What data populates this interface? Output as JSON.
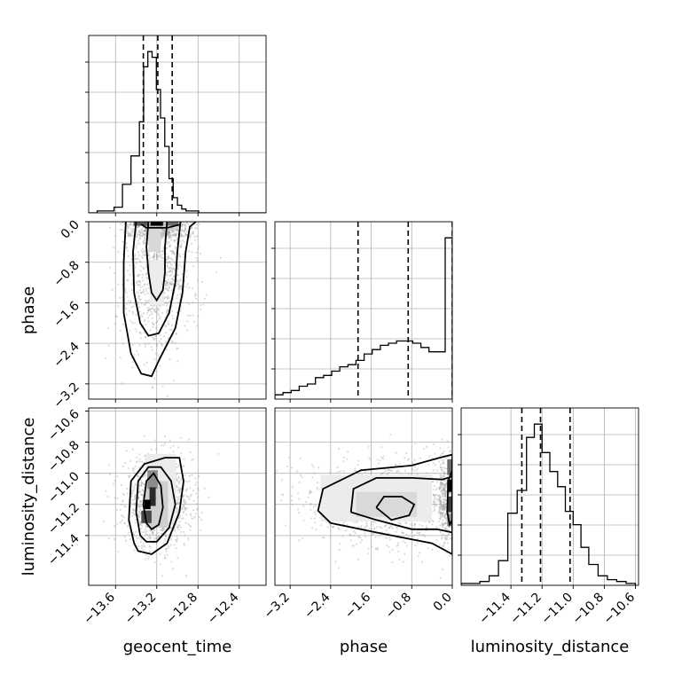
{
  "chart_data": {
    "type": "corner",
    "parameters": [
      "geocent_time",
      "phase",
      "luminosity_distance"
    ],
    "axes": {
      "geocent_time": {
        "label": "geocent_time",
        "lim": [
          -13.86,
          -12.14
        ],
        "ticks": [
          -13.6,
          -13.2,
          -12.8,
          -12.4
        ],
        "tick_labels": [
          "−13.6",
          "−13.2",
          "−12.8",
          "−12.4"
        ]
      },
      "phase": {
        "label": "phase",
        "lim": [
          -3.5,
          0.0
        ],
        "ticks": [
          -3.2,
          -2.4,
          -1.6,
          -0.8,
          0.0
        ],
        "tick_labels": [
          "−3.2",
          "−2.4",
          "−1.6",
          "−0.8",
          "0.0"
        ]
      },
      "luminosity_distance": {
        "label": "luminosity_distance",
        "lim": [
          -11.72,
          -10.58
        ],
        "ticks": [
          -11.4,
          -11.2,
          -11.0,
          -10.8,
          -10.6
        ],
        "tick_labels": [
          "−11.4",
          "−11.2",
          "−11.0",
          "−10.8",
          "−10.6"
        ]
      }
    },
    "marginals": [
      {
        "param": "geocent_time",
        "quantiles": [
          -13.33,
          -13.19,
          -13.05
        ],
        "bins": [
          -13.86,
          -13.778,
          -13.696,
          -13.614,
          -13.532,
          -13.45,
          -13.368,
          -13.327,
          -13.286,
          -13.245,
          -13.204,
          -13.163,
          -13.122,
          -13.081,
          -13.04,
          -12.999,
          -12.958,
          -12.917,
          -12.876,
          -12.835,
          -12.794,
          -12.712,
          -12.63,
          -12.548,
          -12.466,
          -12.384,
          -12.302,
          -12.22,
          -12.14
        ],
        "counts": [
          0,
          1,
          1,
          3,
          15,
          30,
          48,
          77,
          85,
          82,
          65,
          50,
          35,
          18,
          8,
          4,
          2,
          1,
          1,
          1,
          0,
          0,
          0,
          0,
          0,
          0,
          0,
          0
        ]
      },
      {
        "param": "phase",
        "quantiles": [
          -1.86,
          -0.87,
          0.0
        ],
        "bins": [
          -3.5,
          -3.34,
          -3.18,
          -3.02,
          -2.86,
          -2.7,
          -2.54,
          -2.38,
          -2.22,
          -2.06,
          -1.9,
          -1.74,
          -1.58,
          -1.42,
          -1.26,
          -1.1,
          -0.94,
          -0.78,
          -0.62,
          -0.46,
          -0.3,
          -0.14,
          0.0
        ],
        "counts": [
          2,
          3,
          4,
          6,
          7,
          10,
          11,
          13,
          15,
          16,
          18,
          21,
          23,
          25,
          26,
          27,
          27,
          26,
          24,
          22,
          22,
          75
        ]
      },
      {
        "param": "luminosity_distance",
        "quantiles": [
          -11.33,
          -11.21,
          -11.02
        ],
        "bins": [
          -11.72,
          -11.66,
          -11.6,
          -11.54,
          -11.48,
          -11.42,
          -11.36,
          -11.3,
          -11.25,
          -11.2,
          -11.15,
          -11.1,
          -11.05,
          -11.0,
          -10.95,
          -10.9,
          -10.84,
          -10.78,
          -10.72,
          -10.66,
          -10.6
        ],
        "counts": [
          1,
          1,
          2,
          5,
          13,
          38,
          50,
          78,
          85,
          70,
          60,
          52,
          39,
          32,
          20,
          11,
          5,
          3,
          2,
          1
        ]
      }
    ],
    "joint": [
      {
        "x": "geocent_time",
        "y": "phase",
        "density_cells": [
          {
            "x": -13.2,
            "y": -0.03,
            "w": 0.12,
            "h": 0.1,
            "shade": "#000000"
          },
          {
            "x": -13.35,
            "y": -0.03,
            "w": 0.15,
            "h": 0.1,
            "shade": "#5a5a5a"
          },
          {
            "x": -13.05,
            "y": -0.03,
            "w": 0.12,
            "h": 0.1,
            "shade": "#6e6e6e"
          },
          {
            "x": -13.22,
            "y": -0.35,
            "w": 0.12,
            "h": 0.5,
            "shade": "#d8d8d8"
          },
          {
            "x": -13.2,
            "y": -1.2,
            "w": 0.14,
            "h": 0.9,
            "shade": "#ececec"
          }
        ],
        "contours": [
          [
            [
              -13.28,
              0.0
            ],
            [
              -13.3,
              -0.5
            ],
            [
              -13.28,
              -1.0
            ],
            [
              -13.25,
              -1.4
            ],
            [
              -13.2,
              -1.55
            ],
            [
              -13.14,
              -1.35
            ],
            [
              -13.12,
              -1.0
            ],
            [
              -13.12,
              -0.5
            ],
            [
              -13.1,
              0.0
            ]
          ],
          [
            [
              -13.4,
              0.0
            ],
            [
              -13.43,
              -0.6
            ],
            [
              -13.42,
              -1.4
            ],
            [
              -13.36,
              -2.0
            ],
            [
              -13.28,
              -2.25
            ],
            [
              -13.18,
              -2.2
            ],
            [
              -13.08,
              -1.8
            ],
            [
              -13.02,
              -1.2
            ],
            [
              -13.0,
              -0.6
            ],
            [
              -12.97,
              0.0
            ]
          ],
          [
            [
              -13.5,
              0.0
            ],
            [
              -13.52,
              -0.8
            ],
            [
              -13.52,
              -1.8
            ],
            [
              -13.45,
              -2.6
            ],
            [
              -13.35,
              -3.0
            ],
            [
              -13.25,
              -3.05
            ],
            [
              -13.17,
              -2.7
            ],
            [
              -13.02,
              -2.1
            ],
            [
              -12.95,
              -1.4
            ],
            [
              -12.92,
              -0.6
            ],
            [
              -12.88,
              -0.1
            ],
            [
              -12.82,
              0.0
            ]
          ],
          [
            [
              -13.35,
              -0.05
            ],
            [
              -13.3,
              -0.12
            ],
            [
              -13.1,
              -0.12
            ],
            [
              -12.98,
              -0.06
            ]
          ]
        ],
        "points": {
          "count": 1500,
          "center": [
            -13.18,
            -0.9
          ],
          "spread": [
            0.16,
            0.85
          ]
        }
      },
      {
        "x": "geocent_time",
        "y": "luminosity_distance",
        "density_cells": [
          {
            "x": -13.29,
            "y": -11.2,
            "w": 0.06,
            "h": 0.06,
            "shade": "#000000"
          },
          {
            "x": -13.24,
            "y": -11.15,
            "w": 0.06,
            "h": 0.12,
            "shade": "#2a2a2a"
          },
          {
            "x": -13.3,
            "y": -11.28,
            "w": 0.1,
            "h": 0.08,
            "shade": "#4a4a4a"
          },
          {
            "x": -13.24,
            "y": -11.04,
            "w": 0.1,
            "h": 0.12,
            "shade": "#8c8c8c"
          },
          {
            "x": -13.2,
            "y": -11.2,
            "w": 0.22,
            "h": 0.3,
            "shade": "#cfcfcf"
          },
          {
            "x": -13.16,
            "y": -11.1,
            "w": 0.3,
            "h": 0.45,
            "shade": "#ebebeb"
          }
        ],
        "contours": [
          [
            [
              -13.3,
              -11.32
            ],
            [
              -13.33,
              -11.2
            ],
            [
              -13.3,
              -11.05
            ],
            [
              -13.23,
              -11.0
            ],
            [
              -13.16,
              -11.08
            ],
            [
              -13.14,
              -11.22
            ],
            [
              -13.18,
              -11.33
            ],
            [
              -13.25,
              -11.36
            ],
            [
              -13.3,
              -11.32
            ]
          ],
          [
            [
              -13.36,
              -11.4
            ],
            [
              -13.4,
              -11.25
            ],
            [
              -13.38,
              -11.05
            ],
            [
              -13.28,
              -10.96
            ],
            [
              -13.16,
              -10.96
            ],
            [
              -13.06,
              -11.05
            ],
            [
              -13.02,
              -11.2
            ],
            [
              -13.08,
              -11.35
            ],
            [
              -13.2,
              -11.44
            ],
            [
              -13.3,
              -11.44
            ],
            [
              -13.36,
              -11.4
            ]
          ],
          [
            [
              -13.42,
              -11.45
            ],
            [
              -13.47,
              -11.3
            ],
            [
              -13.45,
              -11.05
            ],
            [
              -13.32,
              -10.94
            ],
            [
              -13.12,
              -10.9
            ],
            [
              -12.98,
              -10.9
            ],
            [
              -12.94,
              -11.05
            ],
            [
              -12.98,
              -11.25
            ],
            [
              -13.1,
              -11.45
            ],
            [
              -13.25,
              -11.52
            ],
            [
              -13.38,
              -11.5
            ],
            [
              -13.42,
              -11.45
            ]
          ]
        ],
        "points": {
          "count": 1300,
          "center": [
            -13.18,
            -11.18
          ],
          "spread": [
            0.16,
            0.14
          ]
        }
      },
      {
        "x": "phase",
        "y": "luminosity_distance",
        "density_cells": [
          {
            "x": -0.05,
            "y": -11.08,
            "w": 0.1,
            "h": 0.08,
            "shade": "#000000"
          },
          {
            "x": -0.05,
            "y": -11.2,
            "w": 0.1,
            "h": 0.1,
            "shade": "#3a3a3a"
          },
          {
            "x": -0.05,
            "y": -10.96,
            "w": 0.1,
            "h": 0.1,
            "shade": "#6a6a6a"
          },
          {
            "x": -0.05,
            "y": -11.3,
            "w": 0.1,
            "h": 0.08,
            "shade": "#8c8c8c"
          },
          {
            "x": -1.3,
            "y": -11.2,
            "w": 1.2,
            "h": 0.16,
            "shade": "#d9d9d9"
          },
          {
            "x": -1.5,
            "y": -11.16,
            "w": 2.2,
            "h": 0.3,
            "shade": "#ececec"
          }
        ],
        "contours": [
          [
            [
              -1.5,
              -11.22
            ],
            [
              -1.35,
              -11.15
            ],
            [
              -1.0,
              -11.15
            ],
            [
              -0.75,
              -11.2
            ],
            [
              -0.85,
              -11.27
            ],
            [
              -1.2,
              -11.3
            ],
            [
              -1.5,
              -11.22
            ]
          ],
          [
            [
              -2.0,
              -11.25
            ],
            [
              -1.95,
              -11.1
            ],
            [
              -1.5,
              -11.03
            ],
            [
              -0.8,
              -11.03
            ],
            [
              -0.2,
              -11.04
            ],
            [
              0.0,
              -11.02
            ],
            [
              0.0,
              -11.38
            ],
            [
              -0.3,
              -11.36
            ],
            [
              -0.8,
              -11.36
            ],
            [
              -1.5,
              -11.3
            ],
            [
              -2.0,
              -11.25
            ]
          ],
          [
            [
              -2.65,
              -11.24
            ],
            [
              -2.55,
              -11.1
            ],
            [
              -1.8,
              -10.98
            ],
            [
              -0.8,
              -10.95
            ],
            [
              -0.25,
              -10.9
            ],
            [
              0.0,
              -10.88
            ],
            [
              0.0,
              -11.52
            ],
            [
              -0.4,
              -11.45
            ],
            [
              -1.5,
              -11.38
            ],
            [
              -2.4,
              -11.32
            ],
            [
              -2.65,
              -11.24
            ]
          ],
          [
            [
              0.0,
              -10.98
            ],
            [
              -0.08,
              -11.05
            ],
            [
              -0.1,
              -11.25
            ],
            [
              -0.05,
              -11.33
            ],
            [
              0.0,
              -11.3
            ]
          ]
        ],
        "points": {
          "count": 1500,
          "center": [
            -1.1,
            -11.18
          ],
          "spread": [
            0.85,
            0.14
          ]
        }
      }
    ]
  }
}
